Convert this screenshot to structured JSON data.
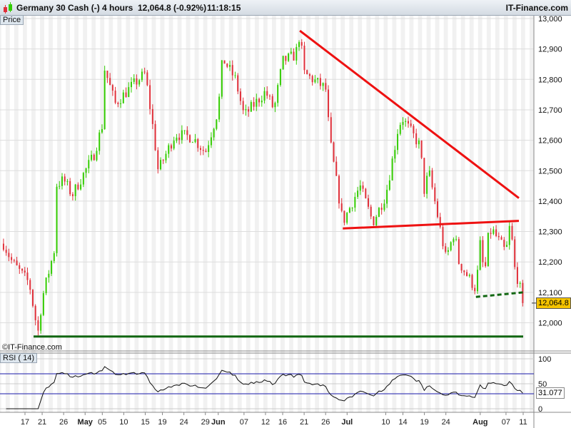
{
  "header": {
    "instrument": "Germany 30 Cash (-)",
    "timeframe": "4 hours",
    "last_change": "12,064.8 (-0.92%)",
    "time": "11:18:15",
    "brand": "IT-Finance.com"
  },
  "price_panel": {
    "label": "Price",
    "watermark": "©IT-Finance.com",
    "current_price_label": "12,064.8"
  },
  "rsi_panel": {
    "label": "RSI ( 14)",
    "current_value_label": "31.077"
  },
  "colors": {
    "up": "#33cc00",
    "down": "#e0303a",
    "resistance": "#ee1111",
    "support": "#116611",
    "rsi_band": "#1a1aaa"
  },
  "chart_data": {
    "type": "candlestick",
    "title": "Germany 30 Cash (-) 4 hours",
    "y_ticks": [
      "13,000",
      "12,900",
      "12,800",
      "12,700",
      "12,600",
      "12,500",
      "12,400",
      "12,300",
      "12,200",
      "12,100",
      "12,000"
    ],
    "y_tick_values": [
      13000,
      12900,
      12800,
      12700,
      12600,
      12500,
      12400,
      12300,
      12200,
      12100,
      12000
    ],
    "ylim": [
      11930,
      13050
    ],
    "x_ticks": [
      {
        "label": "17",
        "date": "04-17"
      },
      {
        "label": "21",
        "date": "04-21"
      },
      {
        "label": "26",
        "date": "04-26"
      },
      {
        "label": "May",
        "date": "05-01",
        "bold": true
      },
      {
        "label": "05",
        "date": "05-05"
      },
      {
        "label": "10",
        "date": "05-10"
      },
      {
        "label": "15",
        "date": "05-15"
      },
      {
        "label": "19",
        "date": "05-19"
      },
      {
        "label": "24",
        "date": "05-24"
      },
      {
        "label": "29",
        "date": "05-29"
      },
      {
        "label": "Jun",
        "date": "06-01",
        "bold": true
      },
      {
        "label": "07",
        "date": "06-07"
      },
      {
        "label": "12",
        "date": "06-12"
      },
      {
        "label": "16",
        "date": "06-16"
      },
      {
        "label": "21",
        "date": "06-21"
      },
      {
        "label": "26",
        "date": "06-26"
      },
      {
        "label": "Jul",
        "date": "07-01",
        "bold": true
      },
      {
        "label": "10",
        "date": "07-10"
      },
      {
        "label": "14",
        "date": "07-14"
      },
      {
        "label": "19",
        "date": "07-19"
      },
      {
        "label": "24",
        "date": "07-24"
      },
      {
        "label": "Aug",
        "date": "08-01",
        "bold": true
      },
      {
        "label": "07",
        "date": "08-07"
      },
      {
        "label": "11",
        "date": "08-11"
      }
    ],
    "close_waypoints": [
      [
        "04-12",
        12260
      ],
      [
        "04-14",
        12200
      ],
      [
        "04-18",
        12130
      ],
      [
        "04-20",
        11965
      ],
      [
        "04-21",
        12080
      ],
      [
        "04-24",
        12250
      ],
      [
        "04-24",
        12450
      ],
      [
        "04-26",
        12470
      ],
      [
        "04-28",
        12420
      ],
      [
        "05-03",
        12550
      ],
      [
        "05-05",
        12650
      ],
      [
        "05-05",
        12860
      ],
      [
        "05-08",
        12720
      ],
      [
        "05-12",
        12780
      ],
      [
        "05-15",
        12820
      ],
      [
        "05-17",
        12620
      ],
      [
        "05-18",
        12500
      ],
      [
        "05-22",
        12620
      ],
      [
        "05-26",
        12610
      ],
      [
        "05-29",
        12560
      ],
      [
        "06-01",
        12700
      ],
      [
        "06-02",
        12870
      ],
      [
        "06-05",
        12800
      ],
      [
        "06-07",
        12680
      ],
      [
        "06-12",
        12760
      ],
      [
        "06-14",
        12700
      ],
      [
        "06-16",
        12860
      ],
      [
        "06-19",
        12880
      ],
      [
        "06-20",
        12950
      ],
      [
        "06-21",
        12820
      ],
      [
        "06-26",
        12770
      ],
      [
        "06-27",
        12600
      ],
      [
        "06-29",
        12420
      ],
      [
        "06-30",
        12330
      ],
      [
        "07-04",
        12450
      ],
      [
        "07-07",
        12330
      ],
      [
        "07-10",
        12420
      ],
      [
        "07-12",
        12570
      ],
      [
        "07-13",
        12650
      ],
      [
        "07-14",
        12670
      ],
      [
        "07-18",
        12580
      ],
      [
        "07-19",
        12430
      ],
      [
        "07-20",
        12500
      ],
      [
        "07-21",
        12430
      ],
      [
        "07-24",
        12210
      ],
      [
        "07-26",
        12300
      ],
      [
        "07-27",
        12200
      ],
      [
        "07-31",
        12110
      ],
      [
        "08-01",
        12260
      ],
      [
        "08-02",
        12150
      ],
      [
        "08-03",
        12300
      ],
      [
        "08-04",
        12300
      ],
      [
        "08-07",
        12230
      ],
      [
        "08-08",
        12330
      ],
      [
        "08-09",
        12180
      ],
      [
        "08-10",
        12130
      ],
      [
        "08-11",
        12065
      ]
    ],
    "last_price": 12064.8,
    "trendlines": [
      {
        "name": "descending resistance",
        "from": [
          "06-20",
          12960
        ],
        "to": [
          "08-10",
          12410
        ],
        "style": "solid",
        "color": "red"
      },
      {
        "name": "neckline",
        "from": [
          "06-30",
          12310
        ],
        "to": [
          "08-10",
          12335
        ],
        "style": "solid",
        "color": "red"
      },
      {
        "name": "short-term support",
        "from": [
          "07-31",
          12085
        ],
        "to": [
          "08-11",
          12100
        ],
        "style": "dashed",
        "color": "green"
      },
      {
        "name": "major support",
        "from": [
          "04-19",
          11955
        ],
        "to": [
          "08-11",
          11955
        ],
        "style": "solid",
        "color": "green"
      }
    ],
    "rsi": {
      "period": 14,
      "ylim": [
        0,
        100
      ],
      "levels": [
        30,
        70
      ],
      "y_ticks": [
        "100",
        "50",
        "0"
      ],
      "y_tick_values": [
        100,
        50,
        0
      ],
      "last": 31.077
    }
  }
}
